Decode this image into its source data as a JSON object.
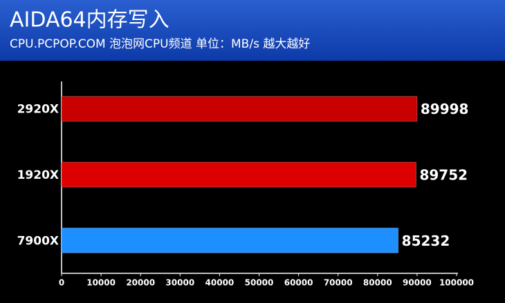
{
  "chart_data": {
    "type": "bar",
    "orientation": "horizontal",
    "title": "AIDA64内存写入",
    "subtitle": "CPU.PCPOP.COM 泡泡网CPU频道 单位：MB/s 越大越好",
    "categories": [
      "2920X",
      "1920X",
      "7900X"
    ],
    "values": [
      89998,
      89752,
      85232
    ],
    "colors": [
      "#c80000",
      "#dd0000",
      "#1e8fff"
    ],
    "xlim": [
      0,
      100000
    ],
    "xticks": [
      0,
      10000,
      20000,
      30000,
      40000,
      50000,
      60000,
      70000,
      80000,
      90000,
      100000
    ]
  }
}
